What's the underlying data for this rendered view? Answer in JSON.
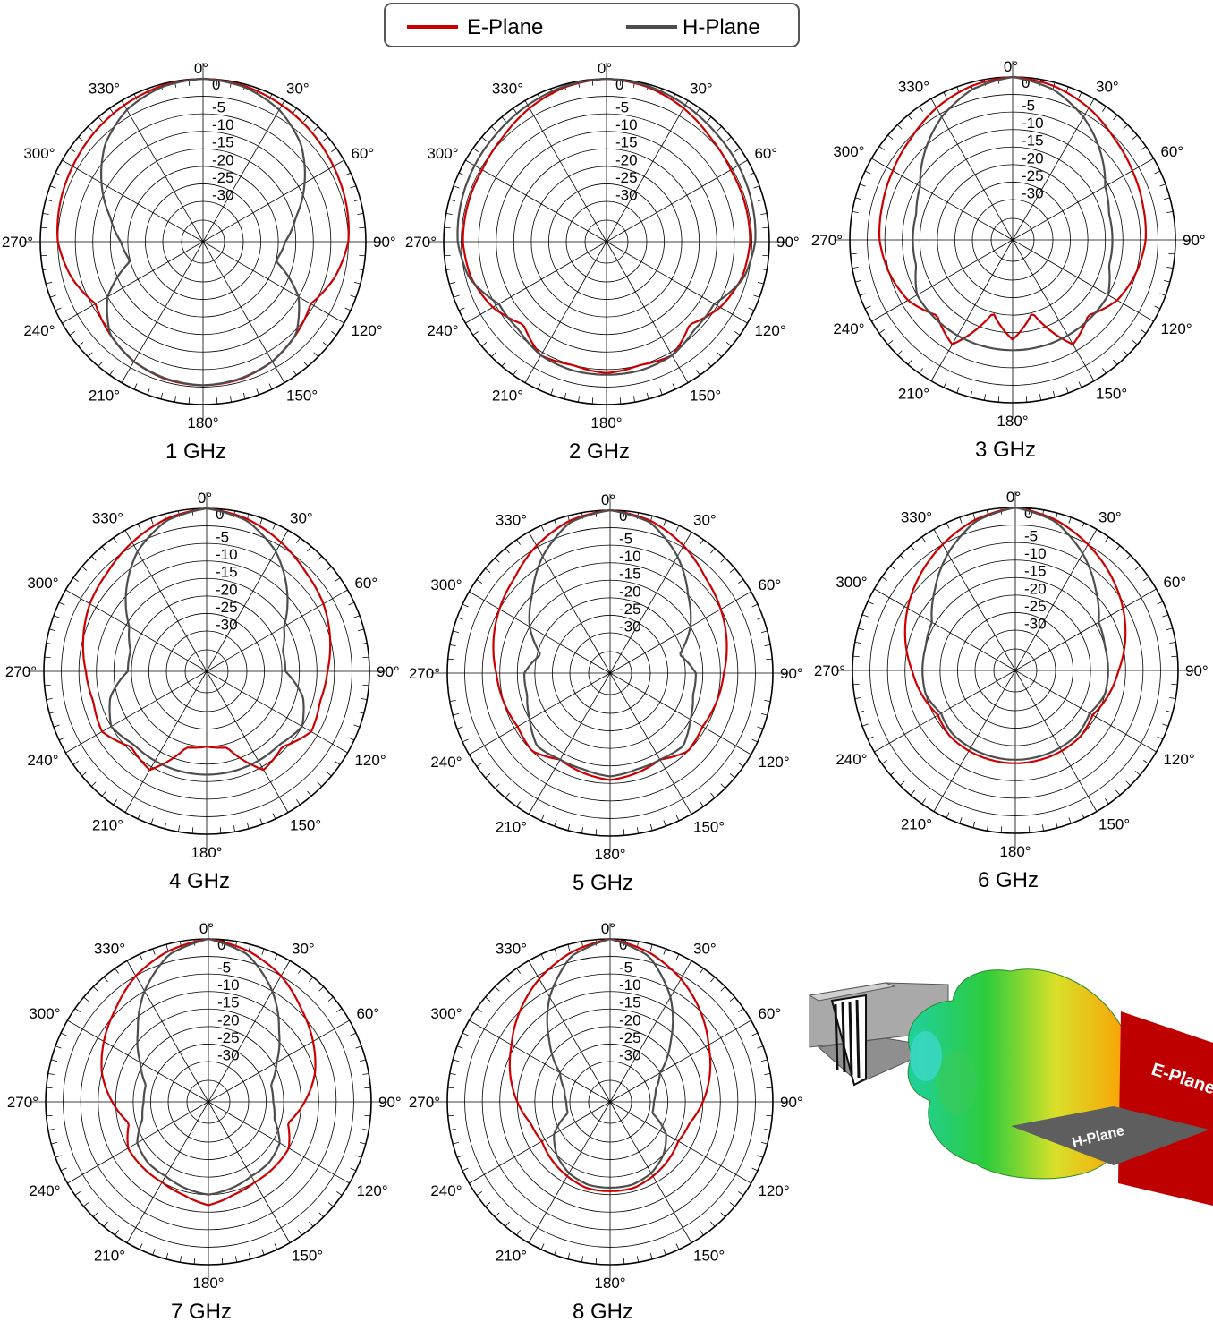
{
  "legend": {
    "placement": "top-center",
    "entries": [
      {
        "label": "E-Plane",
        "color": "#cc0000"
      },
      {
        "label": "H-Plane",
        "color": "#4d4d4d"
      }
    ]
  },
  "colors": {
    "e_plane": "#cc0000",
    "h_plane": "#4d4d4d",
    "grid": "#000000"
  },
  "angle_labels": [
    "0°",
    "30°",
    "60°",
    "90°",
    "120°",
    "150°",
    "180°",
    "210°",
    "240°",
    "270°",
    "300°",
    "330°"
  ],
  "radial_tick_labels": [
    "0",
    "-5",
    "-10",
    "-15",
    "-20",
    "-25",
    "-30"
  ],
  "model_3d": {
    "labels": {
      "e_plane": "E-Plane",
      "h_plane": "H-Plane"
    },
    "colors": {
      "e_panel": "#bf0000",
      "h_panel": "#5e5e5e",
      "lobe_front": "#ffb000",
      "lobe_back": "#19c86e"
    }
  },
  "chart_data": [
    {
      "type": "polar-line",
      "title": "1 GHz",
      "rlim": [
        -35,
        0
      ],
      "angle_unit": "deg",
      "grid": true,
      "series": [
        {
          "name": "E-Plane",
          "theta": [
            0,
            15,
            30,
            45,
            60,
            75,
            90,
            105,
            120,
            135,
            150,
            165,
            180
          ],
          "values": [
            0,
            -0.5,
            -1.5,
            -2.5,
            -3.5,
            -4.2,
            -5,
            -7.5,
            -11,
            -9,
            -7,
            -5.8,
            -5.5
          ]
        },
        {
          "name": "H-Plane",
          "theta": [
            0,
            15,
            30,
            45,
            60,
            75,
            90,
            105,
            120,
            135,
            150,
            165,
            180
          ],
          "values": [
            0,
            -0.8,
            -3,
            -7,
            -13,
            -19,
            -23,
            -25,
            -15,
            -9,
            -7,
            -6,
            -5.5
          ]
        }
      ]
    },
    {
      "type": "polar-line",
      "title": "2 GHz",
      "rlim": [
        -35,
        0
      ],
      "angle_unit": "deg",
      "grid": true,
      "series": [
        {
          "name": "E-Plane",
          "theta": [
            0,
            15,
            30,
            45,
            60,
            75,
            90,
            105,
            120,
            135,
            150,
            165,
            180
          ],
          "values": [
            0,
            -0.8,
            -2.5,
            -4.5,
            -5.5,
            -5.5,
            -5.5,
            -6.5,
            -9,
            -13,
            -9,
            -10,
            -9
          ]
        },
        {
          "name": "H-Plane",
          "theta": [
            0,
            15,
            30,
            45,
            60,
            75,
            90,
            105,
            120,
            135,
            150,
            165,
            180
          ],
          "values": [
            0,
            -0.5,
            -1.5,
            -2.5,
            -3,
            -3.5,
            -4,
            -6,
            -11,
            -11,
            -9,
            -8.5,
            -8.5
          ]
        }
      ]
    },
    {
      "type": "polar-line",
      "title": "3 GHz",
      "rlim": [
        -35,
        0
      ],
      "angle_unit": "deg",
      "grid": true,
      "series": [
        {
          "name": "E-Plane",
          "theta": [
            0,
            15,
            30,
            45,
            60,
            75,
            90,
            105,
            120,
            135,
            150,
            165,
            180
          ],
          "values": [
            0,
            -1,
            -3,
            -5.5,
            -7,
            -8,
            -8.5,
            -10,
            -12,
            -16,
            -12,
            -25,
            -18
          ]
        },
        {
          "name": "H-Plane",
          "theta": [
            0,
            15,
            30,
            45,
            60,
            75,
            90,
            105,
            120,
            135,
            150,
            165,
            180
          ],
          "values": [
            0,
            -2,
            -6,
            -11,
            -16,
            -18,
            -18,
            -18,
            -15,
            -15,
            -15,
            -15,
            -15
          ]
        }
      ]
    },
    {
      "type": "polar-line",
      "title": "4 GHz",
      "rlim": [
        -35,
        0
      ],
      "angle_unit": "deg",
      "grid": true,
      "series": [
        {
          "name": "E-Plane",
          "theta": [
            0,
            15,
            30,
            45,
            60,
            75,
            90,
            105,
            120,
            135,
            150,
            165,
            180
          ],
          "values": [
            0,
            -1.5,
            -4,
            -6.5,
            -8,
            -10,
            -12,
            -13,
            -12,
            -16,
            -14,
            -24,
            -25
          ]
        },
        {
          "name": "H-Plane",
          "theta": [
            0,
            15,
            30,
            45,
            60,
            75,
            90,
            105,
            120,
            135,
            150,
            165,
            180
          ],
          "values": [
            0,
            -2,
            -7,
            -14,
            -21,
            -24,
            -24,
            -18,
            -15,
            -17,
            -17,
            -17,
            -17
          ]
        }
      ]
    },
    {
      "type": "polar-line",
      "title": "5 GHz",
      "rlim": [
        -35,
        0
      ],
      "angle_unit": "deg",
      "grid": true,
      "series": [
        {
          "name": "E-Plane",
          "theta": [
            0,
            15,
            30,
            45,
            60,
            75,
            90,
            105,
            120,
            135,
            150,
            165,
            180
          ],
          "values": [
            0,
            -1.5,
            -4.5,
            -8,
            -10,
            -12,
            -14,
            -15,
            -16,
            -15,
            -18,
            -17,
            -16
          ]
        },
        {
          "name": "H-Plane",
          "theta": [
            0,
            15,
            30,
            45,
            60,
            75,
            90,
            105,
            120,
            135,
            150,
            165,
            180
          ],
          "values": [
            0,
            -2,
            -8,
            -15,
            -20,
            -26,
            -22,
            -22,
            -20,
            -17,
            -18,
            -18,
            -17
          ]
        }
      ]
    },
    {
      "type": "polar-line",
      "title": "6 GHz",
      "rlim": [
        -35,
        0
      ],
      "angle_unit": "deg",
      "grid": true,
      "series": [
        {
          "name": "E-Plane",
          "theta": [
            0,
            15,
            30,
            45,
            60,
            75,
            90,
            105,
            120,
            135,
            150,
            165,
            180
          ],
          "values": [
            0,
            -2,
            -5,
            -8,
            -11,
            -14,
            -17,
            -19,
            -21,
            -20,
            -20,
            -20,
            -20
          ]
        },
        {
          "name": "H-Plane",
          "theta": [
            0,
            15,
            30,
            45,
            60,
            75,
            90,
            105,
            120,
            135,
            150,
            165,
            180
          ],
          "values": [
            0,
            -2.5,
            -8,
            -14,
            -19,
            -20,
            -20,
            -20,
            -22,
            -21,
            -21,
            -21,
            -21
          ]
        }
      ]
    },
    {
      "type": "polar-line",
      "title": "7 GHz",
      "rlim": [
        -35,
        0
      ],
      "angle_unit": "deg",
      "grid": true,
      "series": [
        {
          "name": "E-Plane",
          "theta": [
            0,
            15,
            30,
            45,
            60,
            75,
            90,
            105,
            120,
            135,
            150,
            165,
            180
          ],
          "values": [
            0,
            -2,
            -5,
            -9,
            -12,
            -15,
            -19,
            -23,
            -20,
            -20,
            -20,
            -19,
            -17
          ]
        },
        {
          "name": "H-Plane",
          "theta": [
            0,
            15,
            30,
            45,
            60,
            75,
            90,
            105,
            120,
            135,
            150,
            165,
            180
          ],
          "values": [
            0,
            -3,
            -10,
            -18,
            -24,
            -28,
            -28,
            -27,
            -23,
            -22,
            -22,
            -21,
            -20
          ]
        }
      ]
    },
    {
      "type": "polar-line",
      "title": "8 GHz",
      "rlim": [
        -35,
        0
      ],
      "angle_unit": "deg",
      "grid": true,
      "series": [
        {
          "name": "E-Plane",
          "theta": [
            0,
            15,
            30,
            45,
            60,
            75,
            90,
            105,
            120,
            135,
            150,
            165,
            180
          ],
          "values": [
            0,
            -2.5,
            -6,
            -10,
            -14,
            -17,
            -20,
            -23,
            -24,
            -23,
            -22,
            -21,
            -21
          ]
        },
        {
          "name": "H-Plane",
          "theta": [
            0,
            15,
            30,
            45,
            60,
            75,
            90,
            105,
            120,
            135,
            150,
            165,
            180
          ],
          "values": [
            0,
            -3.5,
            -12,
            -22,
            -30,
            -33,
            -34,
            -34,
            -28,
            -25,
            -23,
            -22,
            -22
          ]
        }
      ]
    }
  ]
}
